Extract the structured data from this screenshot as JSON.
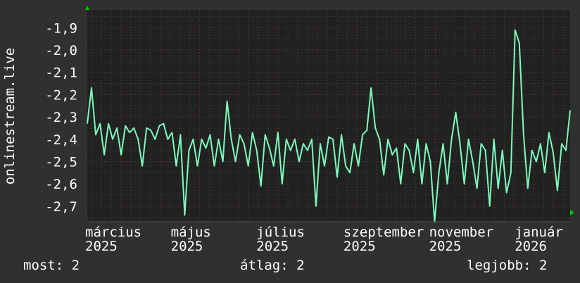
{
  "chart_data": {
    "type": "line",
    "title": "",
    "ylabel": "onlinestream.live",
    "xlabel": "",
    "ylim": [
      -2.77,
      -1.82
    ],
    "yticks": [
      -1.9,
      -2.0,
      -2.1,
      -2.2,
      -2.3,
      -2.4,
      -2.5,
      -2.6,
      -2.7
    ],
    "ytick_labels": [
      "-1,9",
      "-2,0",
      "-2,1",
      "-2,2",
      "-2,3",
      "-2,4",
      "-2,5",
      "-2,6",
      "-2,7"
    ],
    "xtick_labels": [
      "március 2025",
      "május 2025",
      "július 2025",
      "szeptember 2025",
      "november 2025",
      "január 2026"
    ],
    "xtick_dates": [
      "2025-03-01",
      "2025-05-01",
      "2025-07-01",
      "2025-09-01",
      "2025-11-01",
      "2026-01-01"
    ],
    "x_start": "2025-03-01",
    "x_end": "2026-02-08",
    "grid": true,
    "line_color": "#7dfcbc",
    "series": [
      {
        "values": [
          -2.33,
          -2.17,
          -2.38,
          -2.33,
          -2.47,
          -2.33,
          -2.4,
          -2.35,
          -2.47,
          -2.34,
          -2.37,
          -2.35,
          -2.4,
          -2.52,
          -2.35,
          -2.36,
          -2.4,
          -2.34,
          -2.33,
          -2.4,
          -2.37,
          -2.52,
          -2.38,
          -2.74,
          -2.45,
          -2.4,
          -2.52,
          -2.4,
          -2.44,
          -2.38,
          -2.52,
          -2.4,
          -2.5,
          -2.23,
          -2.4,
          -2.5,
          -2.38,
          -2.42,
          -2.52,
          -2.37,
          -2.45,
          -2.61,
          -2.38,
          -2.44,
          -2.52,
          -2.37,
          -2.6,
          -2.4,
          -2.45,
          -2.4,
          -2.5,
          -2.42,
          -2.45,
          -2.4,
          -2.7,
          -2.42,
          -2.52,
          -2.39,
          -2.4,
          -2.57,
          -2.38,
          -2.52,
          -2.55,
          -2.42,
          -2.52,
          -2.38,
          -2.36,
          -2.17,
          -2.35,
          -2.4,
          -2.56,
          -2.4,
          -2.47,
          -2.44,
          -2.6,
          -2.42,
          -2.45,
          -2.55,
          -2.4,
          -2.6,
          -2.42,
          -2.5,
          -2.77,
          -2.55,
          -2.42,
          -2.6,
          -2.4,
          -2.28,
          -2.42,
          -2.6,
          -2.4,
          -2.5,
          -2.62,
          -2.42,
          -2.45,
          -2.7,
          -2.4,
          -2.62,
          -2.45,
          -2.64,
          -2.55,
          -1.91,
          -1.97,
          -2.38,
          -2.62,
          -2.45,
          -2.5,
          -2.42,
          -2.55,
          -2.37,
          -2.46,
          -2.63,
          -2.42,
          -2.45,
          -2.27
        ]
      }
    ]
  },
  "legend": {
    "current": "most: 2",
    "average": "átlag: 2",
    "max": "legjobb: 2"
  },
  "colors": {
    "background": "#303030",
    "plot_background": "#212121",
    "axis_arrow": "#00cc00",
    "major_grid": "#8a3a3a",
    "minor_grid": "#555555"
  }
}
